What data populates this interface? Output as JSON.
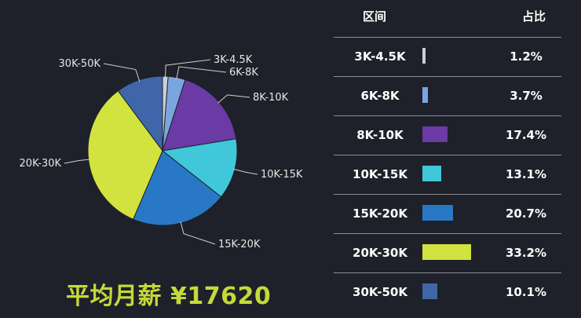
{
  "chart_data": {
    "type": "pie",
    "categories": [
      "3K-4.5K",
      "6K-8K",
      "8K-10K",
      "10K-15K",
      "15K-20K",
      "20K-30K",
      "30K-50K"
    ],
    "values": [
      1.2,
      3.7,
      17.4,
      13.1,
      20.7,
      33.2,
      10.1
    ],
    "colors": [
      "#c9ced8",
      "#7aa6df",
      "#6a3aa5",
      "#40c8da",
      "#2878c6",
      "#d2e23f",
      "#3f66a8"
    ],
    "unit": "%"
  },
  "summary": {
    "avg_salary": "平均月薪 ¥17620"
  },
  "table": {
    "header_range": "区间",
    "header_pct": "占比",
    "rows": [
      {
        "range": "3K-4.5K",
        "pct": "1.2%"
      },
      {
        "range": "6K-8K",
        "pct": "3.7%"
      },
      {
        "range": "8K-10K",
        "pct": "17.4%"
      },
      {
        "range": "10K-15K",
        "pct": "13.1%"
      },
      {
        "range": "15K-20K",
        "pct": "20.7%"
      },
      {
        "range": "20K-30K",
        "pct": "33.2%"
      },
      {
        "range": "30K-50K",
        "pct": "10.1%"
      }
    ]
  }
}
